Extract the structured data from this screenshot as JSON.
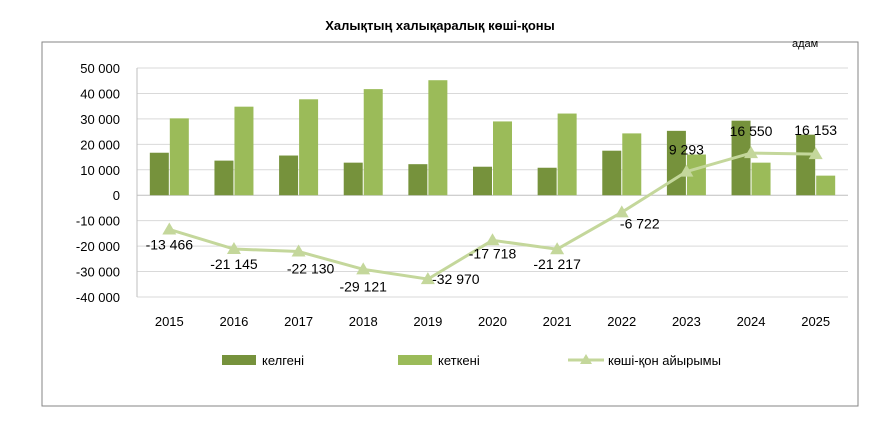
{
  "chart_data": {
    "type": "bar",
    "title": "Халықтың  халықаралық  көші-қоны",
    "unit_label": "адам",
    "categories": [
      "2015",
      "2016",
      "2017",
      "2018",
      "2019",
      "2020",
      "2021",
      "2022",
      "2023",
      "2024",
      "2025"
    ],
    "y_ticks": [
      "50 000",
      "40 000",
      "30 000",
      "20 000",
      "10 000",
      "0",
      "-10 000",
      "-20 000",
      "-30 000",
      "-40 000"
    ],
    "ylim": [
      -40000,
      50000
    ],
    "grid": true,
    "legend_position": "bottom",
    "series": [
      {
        "name": "келгені",
        "kind": "bar",
        "color": "#76923c",
        "values": [
          16700,
          13600,
          15600,
          12800,
          12200,
          11200,
          10800,
          17500,
          25300,
          29300,
          23800
        ]
      },
      {
        "name": "кеткені",
        "kind": "bar",
        "color": "#9bbb59",
        "values": [
          30200,
          34800,
          37700,
          41700,
          45200,
          29000,
          32100,
          24300,
          16000,
          12800,
          7700
        ]
      },
      {
        "name": "көші-қон айырымы",
        "kind": "line",
        "color": "#c4d79b",
        "values": [
          -13466,
          -21145,
          -22130,
          -29121,
          -32970,
          -17718,
          -21217,
          -6722,
          9293,
          16550,
          16153
        ],
        "labels": [
          "-13 466",
          "-21 145",
          "-22 130",
          "-29 121",
          "-32 970",
          "-17 718",
          "-21 217",
          "-6 722",
          "9 293",
          "16 550",
          "16 153"
        ]
      }
    ]
  }
}
